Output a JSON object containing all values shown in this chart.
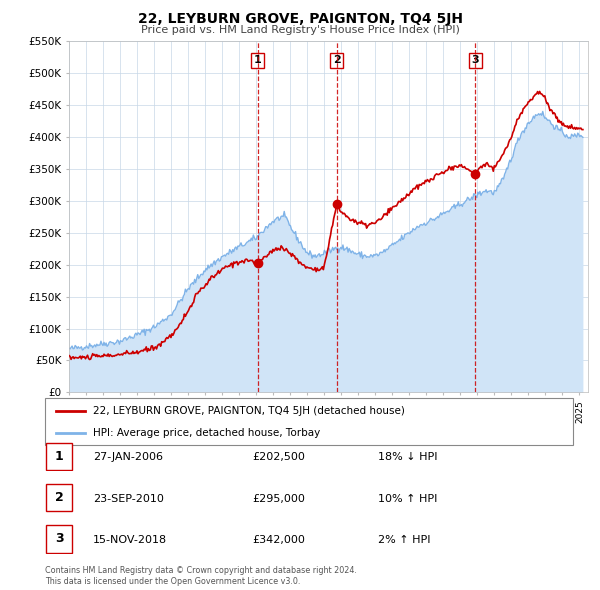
{
  "title": "22, LEYBURN GROVE, PAIGNTON, TQ4 5JH",
  "subtitle": "Price paid vs. HM Land Registry's House Price Index (HPI)",
  "legend_house": "22, LEYBURN GROVE, PAIGNTON, TQ4 5JH (detached house)",
  "legend_hpi": "HPI: Average price, detached house, Torbay",
  "footer1": "Contains HM Land Registry data © Crown copyright and database right 2024.",
  "footer2": "This data is licensed under the Open Government Licence v3.0.",
  "house_color": "#cc0000",
  "hpi_color": "#7fb3e8",
  "hpi_fill_color": "#d0e4f7",
  "transaction_color": "#cc0000",
  "vline_color": "#cc0000",
  "ylim": [
    0,
    550000
  ],
  "yticks": [
    0,
    50000,
    100000,
    150000,
    200000,
    250000,
    300000,
    350000,
    400000,
    450000,
    500000,
    550000
  ],
  "ytick_labels": [
    "£0",
    "£50K",
    "£100K",
    "£150K",
    "£200K",
    "£250K",
    "£300K",
    "£350K",
    "£400K",
    "£450K",
    "£500K",
    "£550K"
  ],
  "xlim_start": 1995.0,
  "xlim_end": 2025.5,
  "transactions": [
    {
      "num": 1,
      "date_num": 2006.08,
      "price": 202500,
      "label": "1",
      "date_str": "27-JAN-2006"
    },
    {
      "num": 2,
      "date_num": 2010.73,
      "price": 295000,
      "label": "2",
      "date_str": "23-SEP-2010"
    },
    {
      "num": 3,
      "date_num": 2018.88,
      "price": 342000,
      "label": "3",
      "date_str": "15-NOV-2018"
    }
  ],
  "table_rows": [
    {
      "num": "1",
      "date": "27-JAN-2006",
      "price": "£202,500",
      "pct": "18% ↓ HPI"
    },
    {
      "num": "2",
      "date": "23-SEP-2010",
      "price": "£295,000",
      "pct": "10% ↑ HPI"
    },
    {
      "num": "3",
      "date": "15-NOV-2018",
      "price": "£342,000",
      "pct": "2% ↑ HPI"
    }
  ],
  "background_color": "#ffffff",
  "plot_bg_color": "#ffffff",
  "grid_color": "#c8d8e8"
}
